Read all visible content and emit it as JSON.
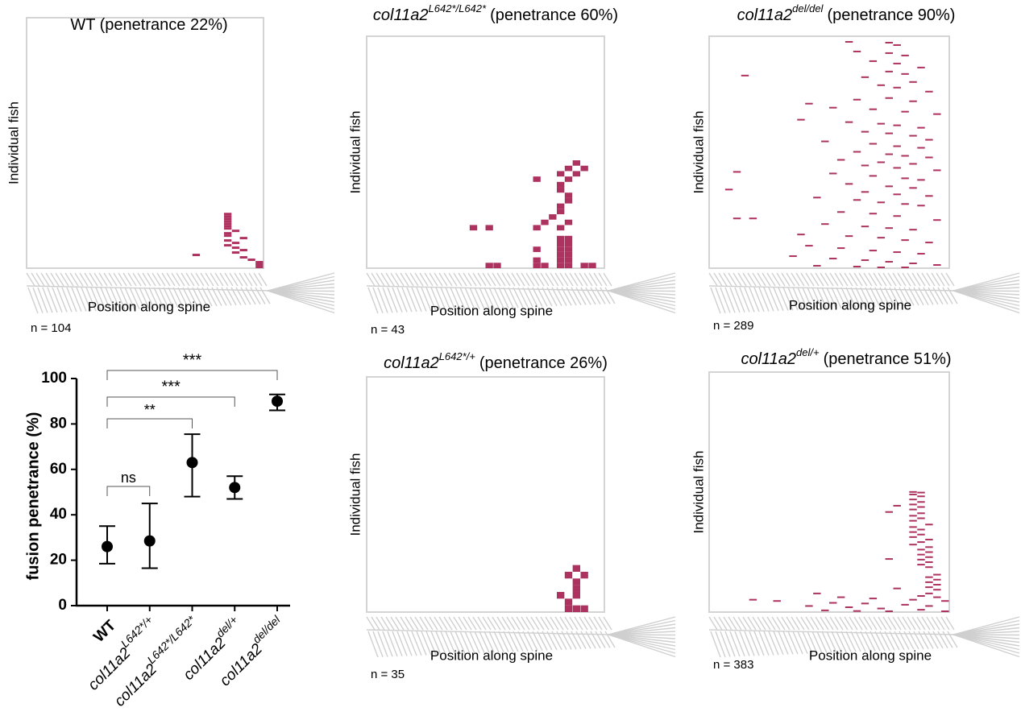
{
  "chart_data": [
    {
      "type": "dot",
      "ylabel": "fusion penetrance (%)",
      "categories": [
        "WT",
        "col11a2",
        "col11a2",
        "col11a2",
        "col11a2"
      ],
      "category_superscripts": [
        null,
        "L642*/+",
        "L642*/L642*",
        "del/+",
        "del/del"
      ],
      "values": [
        26,
        28.5,
        63,
        52,
        90
      ],
      "lower": [
        18.5,
        16.5,
        48,
        47,
        86
      ],
      "upper": [
        35,
        45,
        75.5,
        57,
        93
      ],
      "significance": [
        null,
        "ns",
        "**",
        "***",
        "***"
      ],
      "ylim": [
        0,
        100
      ],
      "yticks": [
        0,
        20,
        40,
        60,
        80,
        100
      ],
      "color": "#000000"
    },
    {
      "type": "raster",
      "title": "WT (penetrance 22%)",
      "ylabel": "Individual fish",
      "xlabel": "Position along spine",
      "n_label": "n = 104",
      "xlim": [
        0,
        30
      ],
      "ylim": [
        0,
        104
      ],
      "color": "#ad3260",
      "segments": [
        [
          29,
          0
        ],
        [
          29,
          1
        ],
        [
          29,
          2
        ],
        [
          28,
          3
        ],
        [
          27,
          4
        ],
        [
          21,
          5
        ],
        [
          26,
          6
        ],
        [
          27,
          7
        ],
        [
          26,
          8
        ],
        [
          25,
          9
        ],
        [
          26,
          10
        ],
        [
          25,
          11
        ],
        [
          27,
          12
        ],
        [
          25,
          13
        ],
        [
          25,
          14
        ],
        [
          26,
          15
        ],
        [
          25,
          16
        ],
        [
          25,
          17
        ],
        [
          25,
          18
        ],
        [
          25,
          19
        ],
        [
          25,
          20
        ],
        [
          25,
          21
        ],
        [
          25,
          22
        ]
      ]
    },
    {
      "type": "raster",
      "title_gene": "col11a2",
      "title_genotype": "L642*/L642*",
      "title": "(penetrance 60%)",
      "ylabel": "Individual fish",
      "xlabel": "Position along spine",
      "n_label": "n = 43",
      "xlim": [
        0,
        30
      ],
      "ylim": [
        0,
        43
      ],
      "color": "#ad3260",
      "segments": [
        [
          15,
          0
        ],
        [
          16,
          0
        ],
        [
          21,
          0
        ],
        [
          22,
          0
        ],
        [
          24,
          0
        ],
        [
          25,
          0
        ],
        [
          27,
          0
        ],
        [
          28,
          0
        ],
        [
          21,
          1
        ],
        [
          24,
          1
        ],
        [
          25,
          1
        ],
        [
          24,
          2
        ],
        [
          25,
          2
        ],
        [
          21,
          3
        ],
        [
          24,
          3
        ],
        [
          25,
          3
        ],
        [
          24,
          4
        ],
        [
          25,
          4
        ],
        [
          24,
          5
        ],
        [
          25,
          5
        ],
        [
          13,
          7
        ],
        [
          15,
          7
        ],
        [
          21,
          7
        ],
        [
          24,
          7
        ],
        [
          22,
          8
        ],
        [
          25,
          8
        ],
        [
          23,
          9
        ],
        [
          24,
          10
        ],
        [
          24,
          11
        ],
        [
          25,
          12
        ],
        [
          25,
          13
        ],
        [
          24,
          14
        ],
        [
          24,
          15
        ],
        [
          21,
          16
        ],
        [
          25,
          16
        ],
        [
          24,
          17
        ],
        [
          26,
          17
        ],
        [
          25,
          18
        ],
        [
          27,
          18
        ],
        [
          26,
          19
        ]
      ]
    },
    {
      "type": "raster",
      "title_gene": "col11a2",
      "title_genotype": "del/del",
      "title": "(penetrance 90%)",
      "ylabel": "Individual fish",
      "xlabel": "Position along spine",
      "n_label": "n = 289",
      "xlim": [
        0,
        30
      ],
      "ylim": [
        0,
        289
      ],
      "color": "#ad3260",
      "segments": [
        [
          17,
          282
        ],
        [
          22,
          281
        ],
        [
          23,
          278
        ],
        [
          18,
          270
        ],
        [
          22,
          268
        ],
        [
          24,
          265
        ],
        [
          20,
          258
        ],
        [
          23,
          255
        ],
        [
          26,
          250
        ],
        [
          4,
          240
        ],
        [
          22,
          245
        ],
        [
          24,
          242
        ],
        [
          19,
          238
        ],
        [
          25,
          232
        ],
        [
          21,
          228
        ],
        [
          23,
          225
        ],
        [
          27,
          220
        ],
        [
          12,
          205
        ],
        [
          18,
          210
        ],
        [
          22,
          212
        ],
        [
          25,
          208
        ],
        [
          15,
          200
        ],
        [
          20,
          198
        ],
        [
          24,
          195
        ],
        [
          28,
          192
        ],
        [
          11,
          185
        ],
        [
          17,
          182
        ],
        [
          21,
          180
        ],
        [
          23,
          178
        ],
        [
          26,
          175
        ],
        [
          19,
          170
        ],
        [
          22,
          168
        ],
        [
          25,
          165
        ],
        [
          27,
          160
        ],
        [
          14,
          158
        ],
        [
          20,
          155
        ],
        [
          23,
          152
        ],
        [
          26,
          150
        ],
        [
          18,
          145
        ],
        [
          22,
          142
        ],
        [
          24,
          140
        ],
        [
          27,
          138
        ],
        [
          16,
          135
        ],
        [
          21,
          132
        ],
        [
          25,
          130
        ],
        [
          19,
          128
        ],
        [
          23,
          125
        ],
        [
          28,
          122
        ],
        [
          3,
          120
        ],
        [
          15,
          118
        ],
        [
          20,
          115
        ],
        [
          24,
          112
        ],
        [
          26,
          110
        ],
        [
          17,
          105
        ],
        [
          22,
          102
        ],
        [
          25,
          100
        ],
        [
          2,
          98
        ],
        [
          19,
          95
        ],
        [
          23,
          92
        ],
        [
          27,
          90
        ],
        [
          13,
          88
        ],
        [
          18,
          85
        ],
        [
          21,
          82
        ],
        [
          24,
          80
        ],
        [
          26,
          78
        ],
        [
          5,
          62
        ],
        [
          3,
          62
        ],
        [
          16,
          70
        ],
        [
          20,
          68
        ],
        [
          23,
          65
        ],
        [
          28,
          60
        ],
        [
          14,
          55
        ],
        [
          19,
          52
        ],
        [
          22,
          50
        ],
        [
          25,
          48
        ],
        [
          11,
          42
        ],
        [
          17,
          40
        ],
        [
          21,
          38
        ],
        [
          24,
          35
        ],
        [
          27,
          32
        ],
        [
          12,
          28
        ],
        [
          16,
          25
        ],
        [
          20,
          22
        ],
        [
          23,
          20
        ],
        [
          26,
          18
        ],
        [
          10,
          15
        ],
        [
          15,
          12
        ],
        [
          19,
          10
        ],
        [
          22,
          8
        ],
        [
          25,
          6
        ],
        [
          28,
          4
        ],
        [
          13,
          3
        ],
        [
          18,
          2
        ],
        [
          21,
          1
        ],
        [
          24,
          0
        ]
      ]
    },
    {
      "type": "raster",
      "title_gene": "col11a2",
      "title_genotype": "L642*/+",
      "title": "(penetrance 26%)",
      "ylabel": "Individual fish",
      "xlabel": "Position along spine",
      "n_label": "n = 35",
      "xlim": [
        0,
        30
      ],
      "ylim": [
        0,
        35
      ],
      "color": "#ad3260",
      "segments": [
        [
          25,
          0
        ],
        [
          26,
          0
        ],
        [
          27,
          0
        ],
        [
          25,
          1
        ],
        [
          24,
          2
        ],
        [
          26,
          2
        ],
        [
          26,
          3
        ],
        [
          26,
          4
        ],
        [
          25,
          5
        ],
        [
          27,
          5
        ],
        [
          26,
          6
        ]
      ]
    },
    {
      "type": "raster",
      "title_gene": "col11a2",
      "title_genotype": "del/+",
      "title": "(penetrance 51%)",
      "ylabel": "Individual fish",
      "xlabel": "Position along spine",
      "n_label": "n = 383",
      "xlim": [
        0,
        30
      ],
      "ylim": [
        0,
        383
      ],
      "color": "#ad3260",
      "segments": [
        [
          25,
          192
        ],
        [
          26,
          191
        ],
        [
          25,
          188
        ],
        [
          26,
          185
        ],
        [
          25,
          180
        ],
        [
          26,
          176
        ],
        [
          25,
          172
        ],
        [
          23,
          170
        ],
        [
          26,
          168
        ],
        [
          25,
          164
        ],
        [
          22,
          160
        ],
        [
          26,
          158
        ],
        [
          25,
          154
        ],
        [
          26,
          150
        ],
        [
          25,
          146
        ],
        [
          27,
          140
        ],
        [
          25,
          136
        ],
        [
          26,
          132
        ],
        [
          25,
          128
        ],
        [
          26,
          124
        ],
        [
          25,
          120
        ],
        [
          27,
          116
        ],
        [
          26,
          112
        ],
        [
          25,
          108
        ],
        [
          27,
          104
        ],
        [
          26,
          100
        ],
        [
          22,
          85
        ],
        [
          27,
          96
        ],
        [
          26,
          92
        ],
        [
          27,
          88
        ],
        [
          26,
          84
        ],
        [
          27,
          80
        ],
        [
          26,
          76
        ],
        [
          27,
          72
        ],
        [
          28,
          60
        ],
        [
          27,
          56
        ],
        [
          28,
          52
        ],
        [
          27,
          48
        ],
        [
          28,
          44
        ],
        [
          27,
          40
        ],
        [
          23,
          38
        ],
        [
          28,
          36
        ],
        [
          13,
          30
        ],
        [
          27,
          30
        ],
        [
          26,
          26
        ],
        [
          28,
          24
        ],
        [
          16,
          24
        ],
        [
          20,
          22
        ],
        [
          25,
          20
        ],
        [
          29,
          18
        ],
        [
          8,
          18
        ],
        [
          5,
          20
        ],
        [
          15,
          15
        ],
        [
          19,
          14
        ],
        [
          24,
          12
        ],
        [
          27,
          10
        ],
        [
          12,
          10
        ],
        [
          17,
          8
        ],
        [
          21,
          6
        ],
        [
          26,
          4
        ],
        [
          14,
          3
        ],
        [
          18,
          2
        ],
        [
          22,
          1
        ],
        [
          29,
          0
        ]
      ]
    }
  ]
}
